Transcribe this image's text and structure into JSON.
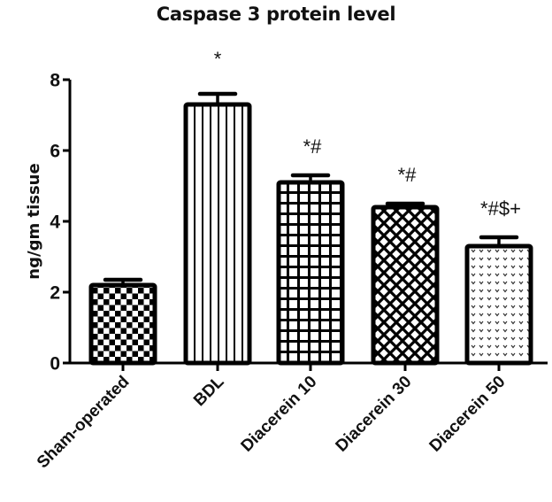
{
  "chart_data": {
    "type": "bar",
    "title": "Caspase 3 protein level",
    "xlabel": "",
    "ylabel": "ng/gm tissue",
    "ylim": [
      0,
      8
    ],
    "yticks": [
      0,
      2,
      4,
      6,
      8
    ],
    "grid": false,
    "legend": null,
    "categories": [
      "Sham-operated",
      "BDL",
      "Diacerein 10",
      "Diacerein 30",
      "Diacerein 50"
    ],
    "values": [
      2.2,
      7.3,
      5.1,
      4.4,
      3.3
    ],
    "error_upper": [
      0.15,
      0.3,
      0.2,
      0.1,
      0.25
    ],
    "annotations": [
      "",
      "*",
      "*#",
      "*#",
      "*#$+"
    ],
    "patterns": [
      "checkerboard",
      "vertical-lines",
      "grid",
      "diamond-crosshatch",
      "dotted"
    ]
  },
  "colors": {
    "ink": "#000000",
    "background": "#ffffff"
  }
}
